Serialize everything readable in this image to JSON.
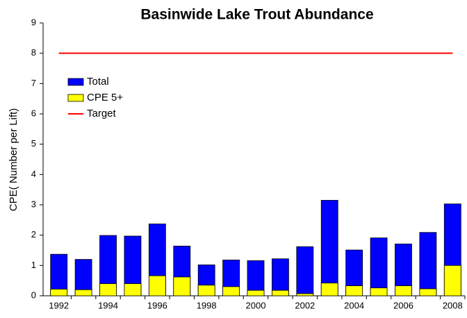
{
  "chart_data": {
    "type": "bar",
    "title": "Basinwide Lake Trout Abundance",
    "y_label": "CPE( Number per Lift)",
    "categories": [
      "1992",
      null,
      "1994",
      null,
      "1996",
      null,
      "1998",
      null,
      "2000",
      null,
      "2002",
      null,
      "2004",
      null,
      "2006",
      null,
      "2008"
    ],
    "series": [
      {
        "name": "Total",
        "color": "#0000ff",
        "values": [
          1.37,
          1.2,
          1.99,
          1.97,
          2.37,
          1.64,
          1.02,
          1.18,
          1.16,
          1.22,
          1.62,
          3.15,
          1.51,
          1.91,
          1.71,
          2.09,
          3.03
        ]
      },
      {
        "name": "CPE 5+",
        "color": "#ffff00",
        "values": [
          0.22,
          0.2,
          0.4,
          0.4,
          0.66,
          0.62,
          0.35,
          0.3,
          0.18,
          0.18,
          0.07,
          0.42,
          0.33,
          0.26,
          0.33,
          0.23,
          1.0
        ]
      },
      {
        "name": "Target",
        "color": "#ff0000",
        "type": "line",
        "values": [
          8,
          8,
          8,
          8,
          8,
          8,
          8,
          8,
          8,
          8,
          8,
          8,
          8,
          8,
          8,
          8,
          8
        ]
      }
    ],
    "ylim": [
      0,
      9
    ],
    "yticks": [
      0,
      1,
      2,
      3,
      4,
      5,
      6,
      7,
      8,
      9
    ],
    "legend": "upper left"
  }
}
